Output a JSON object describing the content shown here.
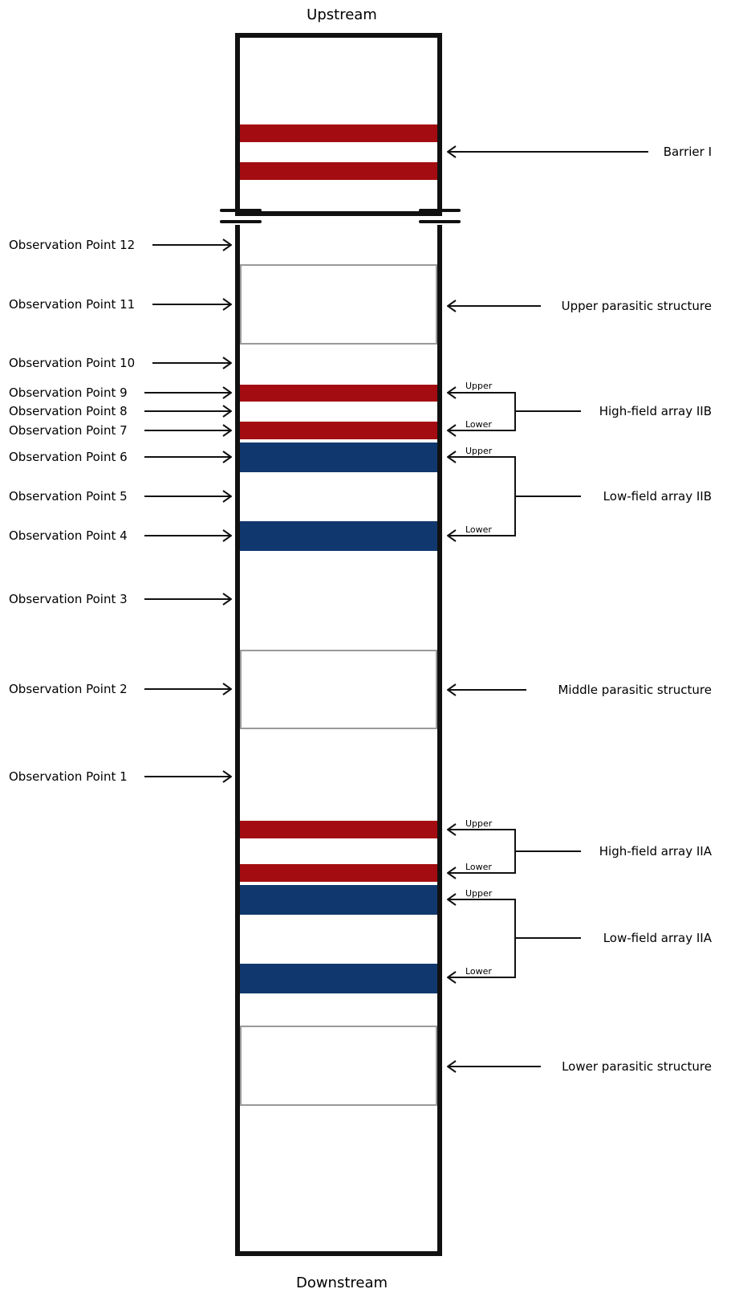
{
  "top_label": "Upstream",
  "bottom_label": "Downstream",
  "colors": {
    "high_field": "#a30d11",
    "low_field": "#11386e",
    "channel": "#111111",
    "parasitic_outline": "#9a9a9a"
  },
  "observation_points": [
    "Observation Point 12",
    "Observation Point 11",
    "Observation Point 10",
    "Observation Point 9",
    "Observation Point 8",
    "Observation Point 7",
    "Observation Point 6",
    "Observation Point 5",
    "Observation Point 4",
    "Observation Point 3",
    "Observation Point 2",
    "Observation Point 1"
  ],
  "structures": {
    "barrier_1": "Barrier I",
    "upper_parasitic": "Upper parasitic structure",
    "high_field_iib": "High-field array IIB",
    "low_field_iib": "Low-field array IIB",
    "middle_parasitic": "Middle parasitic structure",
    "high_field_iia": "High-field array IIA",
    "low_field_iia": "Low-field array IIA",
    "lower_parasitic": "Lower parasitic structure"
  },
  "sub_labels": {
    "upper": "Upper",
    "lower": "Lower"
  }
}
